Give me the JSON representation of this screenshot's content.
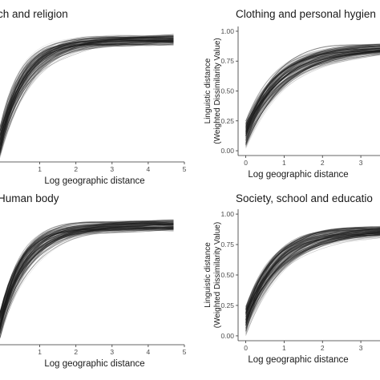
{
  "chart_data": [
    {
      "type": "line",
      "title": "ch and religion",
      "xlabel": "Log geographic distance",
      "ylabel": [],
      "xlim": [
        -0.1,
        5.0
      ],
      "ylim": [
        -0.05,
        1.0
      ],
      "x_ticks": [
        "1",
        "2",
        "3",
        "4",
        "5"
      ],
      "y_ticks": [],
      "series_description": "bundle of ~120 fitted curves",
      "curve_model": {
        "y_start": 0.05,
        "y_end": 0.88,
        "rate": 1.45
      },
      "x_range": [
        -0.1,
        4.7
      ],
      "grid": false,
      "legend": "none"
    },
    {
      "type": "line",
      "title": "Clothing and personal hygien",
      "xlabel": "Log geographic distance",
      "ylabel": [
        "Linguistic distance",
        "(Weighted Dissimilarity Value)"
      ],
      "xlim": [
        -0.2,
        3.5
      ],
      "ylim": [
        -0.04,
        1.04
      ],
      "x_ticks": [
        "0",
        "1",
        "2",
        "3"
      ],
      "y_ticks": [
        "0.00",
        "0.25",
        "0.50",
        "0.75",
        "1.00"
      ],
      "series_description": "bundle of ~120 fitted curves",
      "curve_model": {
        "y_start": 0.1,
        "y_end": 0.87,
        "rate": 1.1
      },
      "x_range": [
        0,
        3.5
      ],
      "grid": false,
      "legend": "none"
    },
    {
      "type": "line",
      "title": "Human body",
      "xlabel": "Log geographic distance",
      "ylabel": [],
      "xlim": [
        -0.1,
        5.0
      ],
      "ylim": [
        -0.05,
        1.0
      ],
      "x_ticks": [
        "1",
        "2",
        "3",
        "4",
        "5"
      ],
      "y_ticks": [],
      "series_description": "bundle of ~120 fitted curves",
      "curve_model": {
        "y_start": 0.05,
        "y_end": 0.88,
        "rate": 1.45
      },
      "x_range": [
        -0.1,
        4.7
      ],
      "grid": false,
      "legend": "none"
    },
    {
      "type": "line",
      "title": "Society, school and educatio",
      "xlabel": "Log geographic distance",
      "ylabel": [
        "Linguistic distance",
        "(Weighted Dissimilarity Value)"
      ],
      "xlim": [
        -0.2,
        3.5
      ],
      "ylim": [
        -0.04,
        1.04
      ],
      "x_ticks": [
        "0",
        "1",
        "2",
        "3"
      ],
      "y_ticks": [
        "0.00",
        "0.25",
        "0.50",
        "0.75",
        "1.00"
      ],
      "series_description": "bundle of ~120 fitted curves",
      "curve_model": {
        "y_start": 0.08,
        "y_end": 0.87,
        "rate": 1.2
      },
      "x_range": [
        0,
        3.5
      ],
      "grid": false,
      "legend": "none"
    }
  ]
}
